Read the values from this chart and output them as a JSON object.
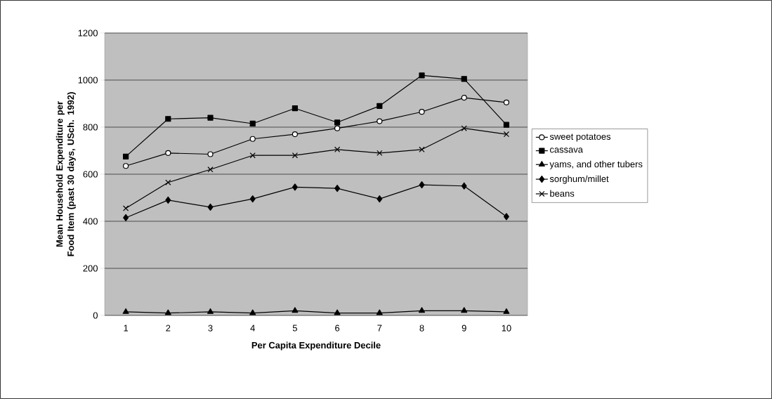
{
  "chart_data": {
    "type": "line",
    "xlabel": "Per Capita Expenditure Decile",
    "ylabel": "Mean Household Expenditure per Food Item (past 30 days, USch. 1992)",
    "categories": [
      "1",
      "2",
      "3",
      "4",
      "5",
      "6",
      "7",
      "8",
      "9",
      "10"
    ],
    "ylim": [
      0,
      1200
    ],
    "yticks": [
      0,
      200,
      400,
      600,
      800,
      1000,
      1200
    ],
    "grid": "y",
    "legend": "right",
    "line_style": "solid",
    "series": [
      {
        "name": "sweet potatoes",
        "color": "#000000",
        "marker": "circle",
        "values": [
          635,
          690,
          685,
          750,
          770,
          795,
          825,
          865,
          925,
          905
        ]
      },
      {
        "name": "cassava",
        "color": "#000000",
        "marker": "square",
        "values": [
          675,
          835,
          840,
          815,
          880,
          820,
          890,
          1020,
          1005,
          810
        ]
      },
      {
        "name": "yams, and other tubers",
        "color": "#000000",
        "marker": "triangle",
        "values": [
          15,
          10,
          15,
          10,
          20,
          10,
          10,
          20,
          20,
          15
        ]
      },
      {
        "name": "sorghum/millet",
        "color": "#000000",
        "marker": "diamond",
        "values": [
          415,
          490,
          460,
          495,
          545,
          540,
          495,
          555,
          550,
          420
        ]
      },
      {
        "name": "beans",
        "color": "#000000",
        "marker": "cross",
        "values": [
          455,
          565,
          620,
          680,
          680,
          705,
          690,
          705,
          795,
          770
        ]
      }
    ]
  }
}
